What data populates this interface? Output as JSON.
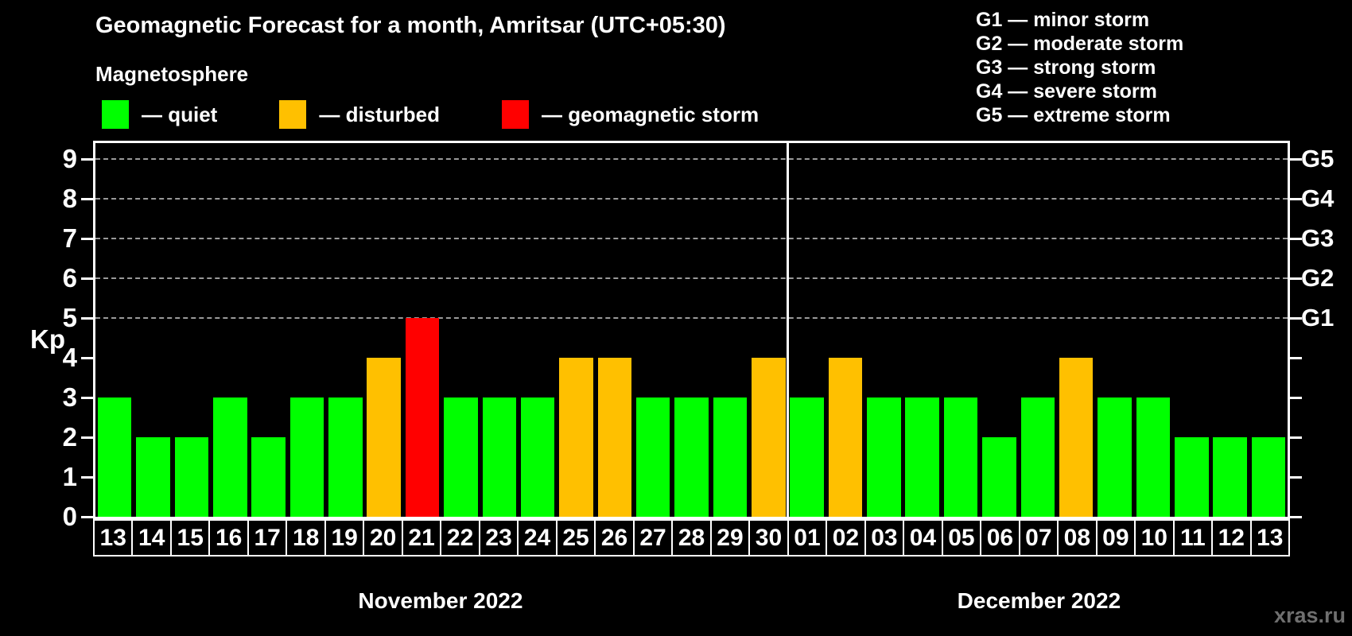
{
  "title": "Geomagnetic Forecast for a month, Amritsar (UTC+05:30)",
  "subtitle": "Magnetosphere",
  "legend": {
    "items": [
      {
        "key": "quiet",
        "label": "— quiet"
      },
      {
        "key": "disturbed",
        "label": "— disturbed"
      },
      {
        "key": "storm",
        "label": "— geomagnetic storm"
      }
    ]
  },
  "storm_scale_legend": {
    "lines": [
      "G1 — minor storm",
      "G2 — moderate storm",
      "G3 — strong storm",
      "G4 — severe storm",
      "G5 — extreme storm"
    ]
  },
  "colors": {
    "quiet": "#00ff00",
    "disturbed": "#ffc000",
    "storm": "#ff0000",
    "background": "#000000",
    "axis": "#ffffff",
    "grid": "#9a9a9a",
    "watermark": "#6f6f6f"
  },
  "axes": {
    "y_label": "Kp",
    "y_ticks": [
      0,
      1,
      2,
      3,
      4,
      5,
      6,
      7,
      8,
      9
    ],
    "right_labels": [
      {
        "kp": 9,
        "label": "G5"
      },
      {
        "kp": 8,
        "label": "G4"
      },
      {
        "kp": 7,
        "label": "G3"
      },
      {
        "kp": 6,
        "label": "G2"
      },
      {
        "kp": 5,
        "label": "G1"
      }
    ]
  },
  "watermark": "xras.ru",
  "chart_data": {
    "type": "bar",
    "title": "Geomagnetic Forecast for a month, Amritsar (UTC+05:30)",
    "xlabel": "",
    "ylabel": "Kp",
    "ylim": [
      0,
      9.4
    ],
    "grid": "dashed horizontal at Kp 5-9",
    "gridlines_at": [
      5,
      6,
      7,
      8,
      9
    ],
    "legend_position": "top-left",
    "months": [
      {
        "label": "November 2022",
        "days": 18
      },
      {
        "label": "December 2022",
        "days": 13
      }
    ],
    "categories": [
      "13",
      "14",
      "15",
      "16",
      "17",
      "18",
      "19",
      "20",
      "21",
      "22",
      "23",
      "24",
      "25",
      "26",
      "27",
      "28",
      "29",
      "30",
      "01",
      "02",
      "03",
      "04",
      "05",
      "06",
      "07",
      "08",
      "09",
      "10",
      "11",
      "12",
      "13"
    ],
    "values": [
      3,
      2,
      2,
      3,
      2,
      3,
      3,
      4,
      5,
      3,
      3,
      3,
      4,
      4,
      3,
      3,
      3,
      4,
      3,
      4,
      3,
      3,
      3,
      2,
      3,
      4,
      3,
      3,
      2,
      2,
      2
    ],
    "statuses": [
      "quiet",
      "quiet",
      "quiet",
      "quiet",
      "quiet",
      "quiet",
      "quiet",
      "disturbed",
      "storm",
      "quiet",
      "quiet",
      "quiet",
      "disturbed",
      "disturbed",
      "quiet",
      "quiet",
      "quiet",
      "disturbed",
      "quiet",
      "disturbed",
      "quiet",
      "quiet",
      "quiet",
      "quiet",
      "quiet",
      "disturbed",
      "quiet",
      "quiet",
      "quiet",
      "quiet",
      "quiet"
    ]
  }
}
